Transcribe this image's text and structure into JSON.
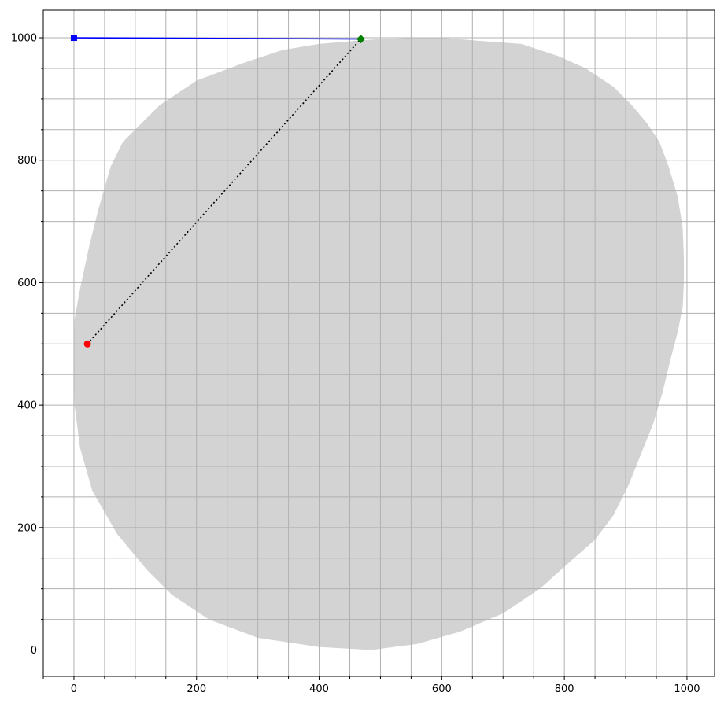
{
  "chart_data": {
    "type": "scatter",
    "title": "",
    "xlabel": "",
    "ylabel": "",
    "xlim": [
      -50,
      1045
    ],
    "ylim": [
      -43,
      1045
    ],
    "xticks": [
      0,
      200,
      400,
      600,
      800,
      1000
    ],
    "yticks": [
      0,
      200,
      400,
      600,
      800,
      1000
    ],
    "xtick_labels": [
      "0",
      "200",
      "400",
      "600",
      "800",
      "1000"
    ],
    "ytick_labels": [
      "0",
      "200",
      "400",
      "600",
      "800",
      "1000"
    ],
    "grid": true,
    "grid_step_minor": 50,
    "region": {
      "color": "#d3d3d3",
      "x": [
        485,
        560,
        630,
        700,
        760,
        810,
        850,
        880,
        905,
        925,
        945,
        960,
        972,
        985,
        993,
        995,
        995,
        993,
        985,
        970,
        955,
        935,
        910,
        880,
        835,
        790,
        730,
        660,
        600,
        560,
        500,
        460,
        400,
        340,
        280,
        200,
        140,
        80,
        60,
        40,
        25,
        10,
        1,
        0,
        1,
        10,
        30,
        70,
        120,
        160,
        220,
        300,
        400
      ],
      "y": [
        0,
        10,
        30,
        60,
        100,
        145,
        180,
        220,
        270,
        320,
        370,
        420,
        470,
        520,
        560,
        600,
        640,
        690,
        740,
        790,
        830,
        860,
        890,
        920,
        950,
        970,
        990,
        995,
        1000,
        1000,
        998,
        995,
        990,
        980,
        960,
        930,
        890,
        830,
        790,
        720,
        660,
        590,
        540,
        480,
        400,
        330,
        260,
        190,
        130,
        90,
        50,
        20,
        5
      ]
    },
    "series": [
      {
        "type": "line",
        "color": "#0000ff",
        "style": "solid",
        "marker": "square",
        "x": [
          0,
          468
        ],
        "y": [
          1000,
          998
        ]
      },
      {
        "type": "line",
        "color": "#000000",
        "style": "dotted",
        "marker": "none",
        "x": [
          22,
          468
        ],
        "y": [
          500,
          998
        ]
      },
      {
        "type": "point",
        "color": "#ff0000",
        "marker": "circle",
        "x": [
          22
        ],
        "y": [
          500
        ]
      },
      {
        "type": "point",
        "color": "#008000",
        "marker": "diamond",
        "x": [
          468
        ],
        "y": [
          998
        ]
      }
    ],
    "colors": {
      "axis": "#000000",
      "grid": "#b0b0b0"
    }
  }
}
